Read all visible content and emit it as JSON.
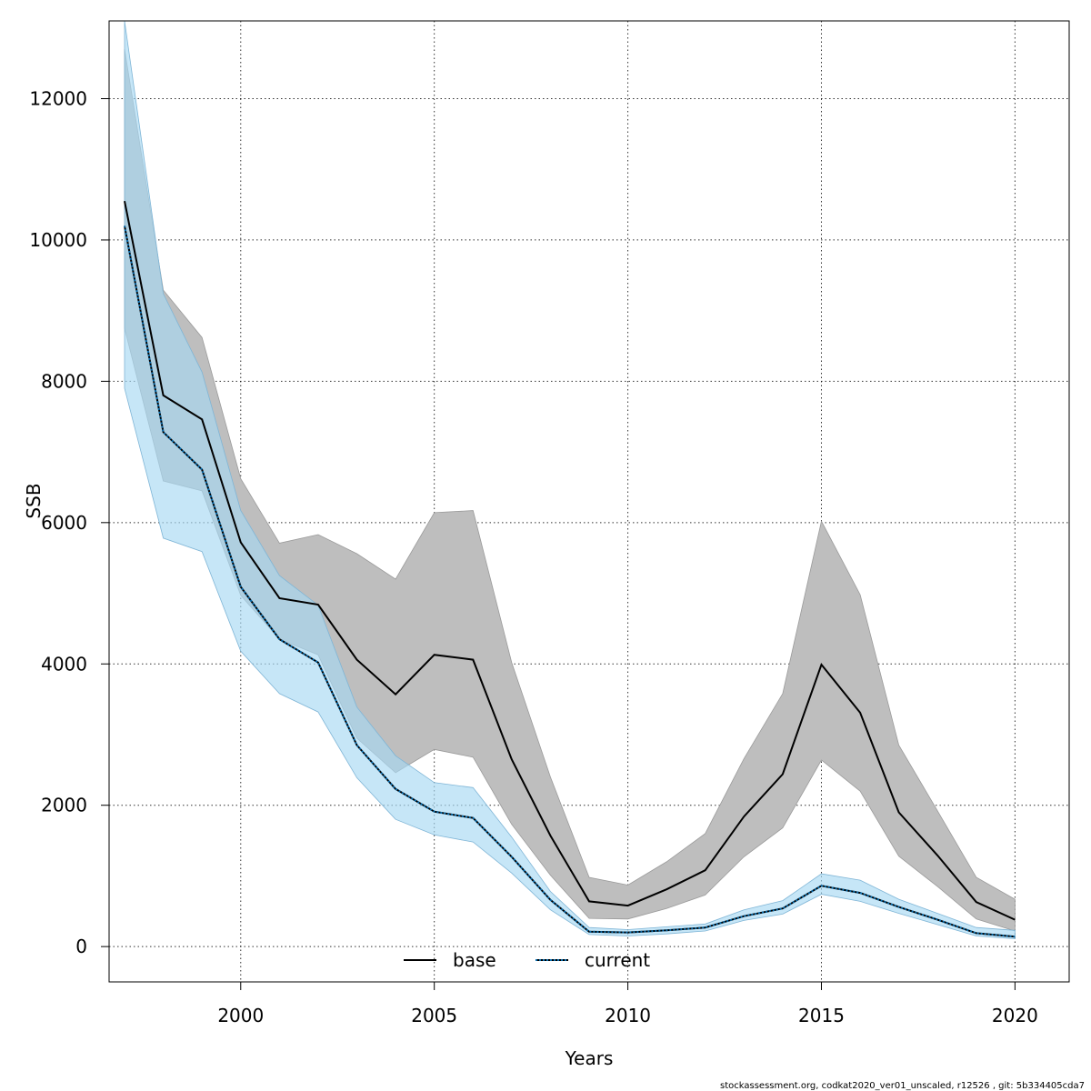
{
  "chart_data": {
    "type": "line",
    "title": "",
    "xlabel": "Years",
    "ylabel": "SSB",
    "xlim": [
      1996.6,
      2021.4
    ],
    "ylim": [
      -500,
      13100
    ],
    "x_ticks": [
      2000,
      2005,
      2010,
      2015,
      2020
    ],
    "y_ticks": [
      0,
      2000,
      4000,
      6000,
      8000,
      10000,
      12000
    ],
    "grid": true,
    "legend_position": "bottom-center",
    "x": [
      1997,
      1998,
      1999,
      2000,
      2001,
      2002,
      2003,
      2004,
      2005,
      2006,
      2007,
      2008,
      2009,
      2010,
      2011,
      2012,
      2013,
      2014,
      2015,
      2016,
      2017,
      2018,
      2019,
      2020
    ],
    "series": [
      {
        "name": "base",
        "color": "#000000",
        "band_color": "#bebebe",
        "dash": "solid",
        "values": [
          10550,
          7800,
          7460,
          5720,
          4930,
          4840,
          4060,
          3570,
          4130,
          4060,
          2650,
          1570,
          640,
          580,
          810,
          1080,
          1840,
          2440,
          3990,
          3310,
          1900,
          1290,
          630,
          380
        ],
        "lower": [
          8750,
          6590,
          6450,
          4970,
          4350,
          4130,
          2950,
          2460,
          2790,
          2680,
          1730,
          1010,
          400,
          390,
          540,
          730,
          1270,
          1680,
          2640,
          2200,
          1280,
          850,
          390,
          220
        ],
        "upper": [
          12700,
          9290,
          8620,
          6620,
          5710,
          5830,
          5560,
          5200,
          6140,
          6170,
          4020,
          2400,
          980,
          870,
          1200,
          1600,
          2660,
          3580,
          6020,
          4980,
          2850,
          1920,
          980,
          670
        ]
      },
      {
        "name": "current",
        "color": "#000000",
        "dash_color": "#0a6fb0",
        "band_color": "#a8d8f2",
        "dash": "dotted",
        "values": [
          10200,
          7280,
          6750,
          5090,
          4350,
          4020,
          2850,
          2230,
          1910,
          1820,
          1270,
          660,
          210,
          200,
          230,
          270,
          430,
          540,
          860,
          760,
          560,
          380,
          190,
          140
        ],
        "lower": [
          7900,
          5780,
          5590,
          4180,
          3580,
          3320,
          2390,
          1800,
          1580,
          1480,
          1040,
          520,
          170,
          150,
          180,
          220,
          370,
          460,
          740,
          640,
          470,
          310,
          150,
          110
        ],
        "upper": [
          13100,
          9240,
          8130,
          6170,
          5250,
          4830,
          3390,
          2700,
          2320,
          2250,
          1550,
          780,
          270,
          240,
          280,
          320,
          520,
          650,
          1030,
          940,
          670,
          470,
          270,
          230
        ]
      }
    ]
  },
  "footnote": "stockassessment.org, codkat2020_ver01_unscaled, r12526 , git: 5b334405cda7"
}
